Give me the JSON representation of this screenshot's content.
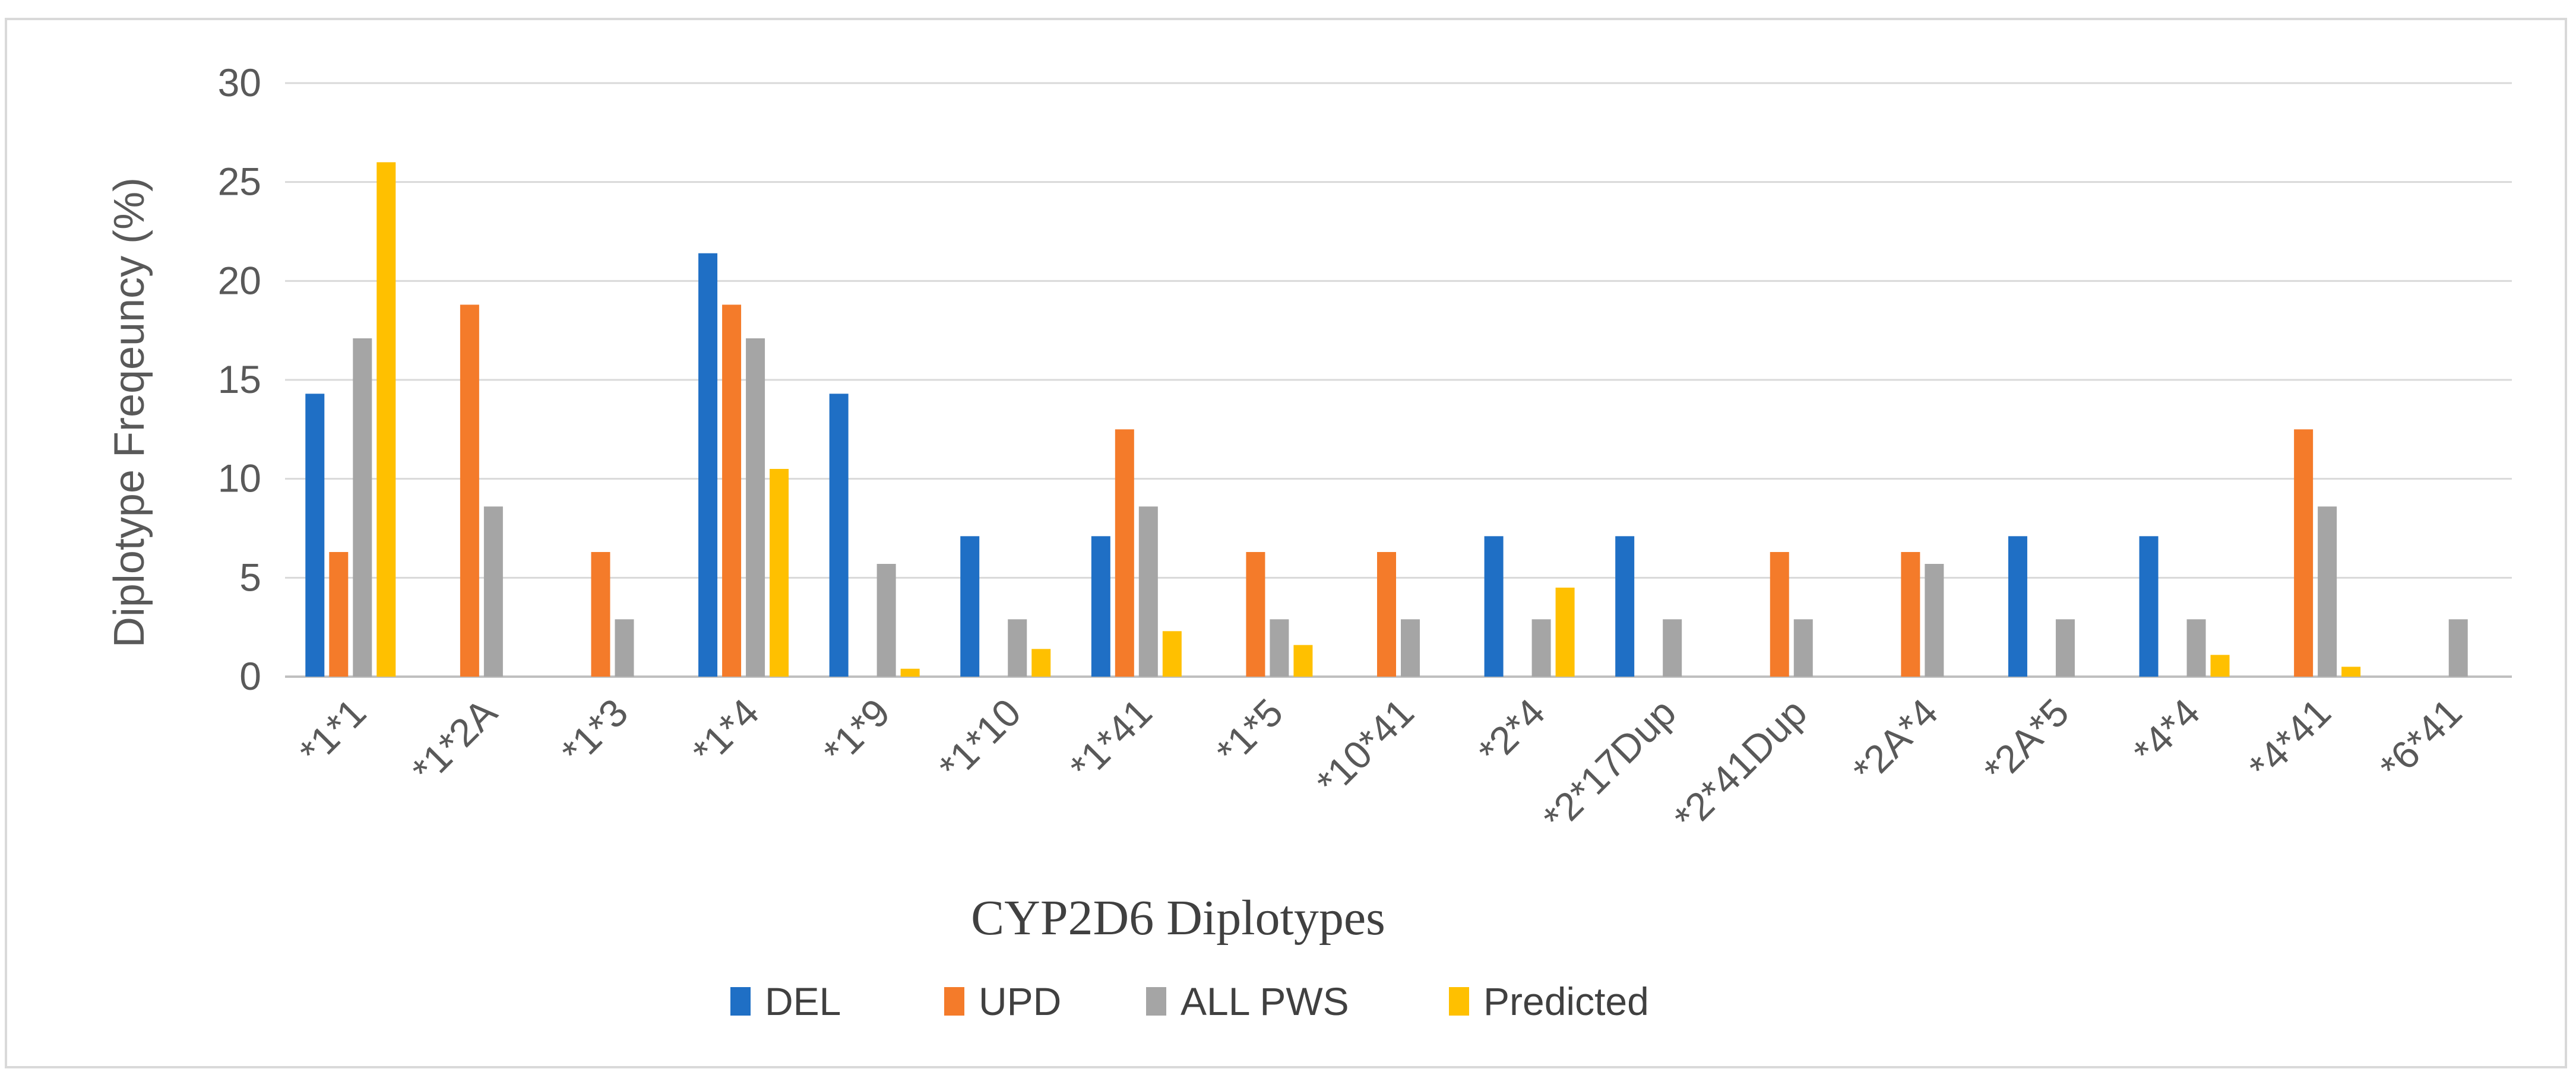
{
  "chart_data": {
    "type": "bar",
    "title": "",
    "xlabel": "CYP2D6 Diplotypes",
    "ylabel": "Diplotype Freqeuncy  (%)",
    "ylim": [
      0,
      30
    ],
    "yticks": [
      0,
      5,
      10,
      15,
      20,
      25,
      30
    ],
    "grid": true,
    "legend_position": "bottom-center",
    "categories": [
      "*1*1",
      "*1*2A",
      "*1*3",
      "*1*4",
      "*1*9",
      "*1*10",
      "*1*41",
      "*1*5",
      "*10*41",
      "*2*4",
      "*2*17Dup",
      "*2*41Dup",
      "*2A*4",
      "*2A*5",
      "*4*4",
      "*4*41",
      "*6*41"
    ],
    "series": [
      {
        "name": "DEL",
        "color": "#1f6fc5",
        "values": [
          14.3,
          0,
          0,
          21.4,
          14.3,
          7.1,
          7.1,
          0,
          0,
          7.1,
          7.1,
          0,
          0,
          7.1,
          7.1,
          0,
          0
        ]
      },
      {
        "name": "UPD",
        "color": "#f47b2a",
        "values": [
          6.3,
          18.8,
          6.3,
          18.8,
          0,
          0,
          12.5,
          6.3,
          6.3,
          0,
          0,
          6.3,
          6.3,
          0,
          0,
          12.5,
          0
        ]
      },
      {
        "name": "ALL PWS",
        "color": "#a5a5a5",
        "values": [
          17.1,
          8.6,
          2.9,
          17.1,
          5.7,
          2.9,
          8.6,
          2.9,
          2.9,
          2.9,
          2.9,
          2.9,
          5.7,
          2.9,
          2.9,
          8.6,
          2.9
        ]
      },
      {
        "name": "Predicted",
        "color": "#ffc000",
        "values": [
          26.0,
          0,
          0,
          10.5,
          0.4,
          1.4,
          2.3,
          1.6,
          0,
          4.5,
          0,
          0,
          0,
          0,
          1.1,
          0.5,
          0
        ]
      }
    ]
  }
}
